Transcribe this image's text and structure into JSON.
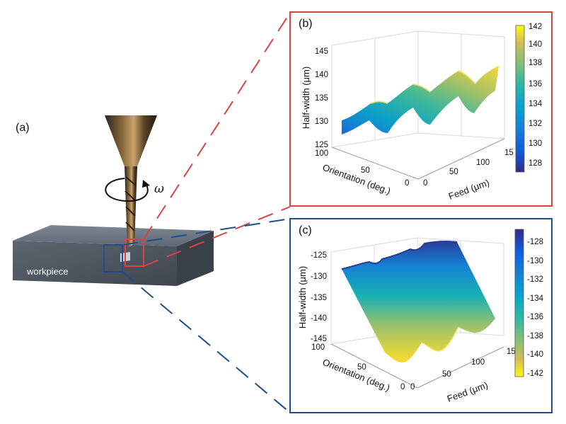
{
  "panel_a": {
    "letter": "(a)",
    "omega_symbol": "ω",
    "workpiece_label": "workpiece"
  },
  "panel_b": {
    "letter": "(b)",
    "frame_color": "#d64541",
    "z_axis_label": "Half-width (μm)",
    "y_axis_label": "Orientation (deg.)",
    "x_axis_label": "Feed (μm)",
    "z_ticks": [
      "125",
      "130",
      "135",
      "140",
      "145"
    ],
    "orientation_ticks": [
      "100",
      "50",
      "0"
    ],
    "feed_ticks": [
      "0",
      "50",
      "100",
      "15"
    ],
    "colorbar_ticks": [
      "142",
      "140",
      "138",
      "136",
      "134",
      "132",
      "130",
      "128"
    ],
    "colormap": "parula"
  },
  "panel_c": {
    "letter": "(c)",
    "frame_color": "#1f4e8c",
    "z_axis_label": "Half-width (μm)",
    "y_axis_label": "Orientation (deg.)",
    "x_axis_label": "Feed (μm)",
    "z_ticks": [
      "-125",
      "-130",
      "-135",
      "-140",
      "-145"
    ],
    "orientation_ticks": [
      "100",
      "50",
      "0"
    ],
    "feed_ticks": [
      "0",
      "50",
      "100",
      "15"
    ],
    "colorbar_ticks": [
      "-128",
      "-130",
      "-132",
      "-134",
      "-136",
      "-138",
      "-140",
      "-142"
    ],
    "colormap": "parula-reversed"
  }
}
